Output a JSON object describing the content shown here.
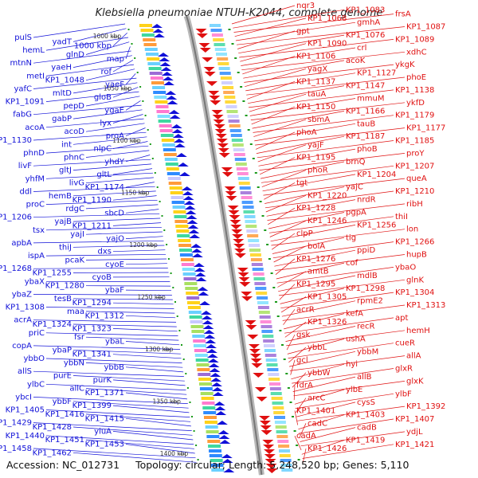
{
  "title": "Klebsiella pneumoniae NTUH-K2044, complete genome",
  "footer": {
    "accession": "Accession: NC_012731",
    "topology": "Topology: circular; Length: 5,248,520 bp; Genes: 5,110"
  },
  "colors": {
    "left_strand": "#1010d8",
    "right_strand": "#e01010",
    "backbone": "#9a9a9a"
  },
  "kbp_ticks": [
    "1000 kbp",
    "1050 kbp",
    "1100 kbp",
    "1150 kbp",
    "1200 kbp",
    "1250 kbp",
    "1300 kbp",
    "1350 kbp",
    "1400 kbp"
  ],
  "left_labels": [
    [
      "pulS",
      0.08
    ],
    [
      "yadT",
      0.1
    ],
    [
      "1000 kbp",
      0.15
    ],
    [
      "hemL",
      0.12
    ],
    [
      "glnD",
      0.14
    ],
    [
      "map",
      0.17
    ],
    [
      "mtnN",
      0.14
    ],
    [
      "yaeH",
      0.16
    ],
    [
      "rof",
      0.2
    ],
    [
      "metI",
      0.22
    ],
    [
      "KP1_1048",
      0.21
    ],
    [
      "yaeF",
      0.23
    ],
    [
      "yafC",
      0.22
    ],
    [
      "mltD",
      0.24
    ],
    [
      "gloB",
      0.25
    ],
    [
      "KP1_1091",
      0.26
    ],
    [
      "pepD",
      0.28
    ],
    [
      "ygaE",
      0.29
    ],
    [
      "fabG",
      0.3
    ],
    [
      "gabP",
      0.31
    ],
    [
      "lyx",
      0.32
    ],
    [
      "acoA",
      0.33
    ],
    [
      "acoD",
      0.34
    ],
    [
      "proA",
      0.35
    ],
    [
      "KP1_1130",
      0.36
    ],
    [
      "int",
      0.37
    ],
    [
      "nlpC",
      0.38
    ],
    [
      "phnD",
      0.39
    ],
    [
      "phnC",
      0.4
    ],
    [
      "yhdY",
      0.41
    ],
    [
      "livF",
      0.42
    ],
    [
      "gltJ",
      0.43
    ],
    [
      "gltL",
      0.44
    ],
    [
      "yhfM",
      0.45
    ],
    [
      "livG",
      0.46
    ],
    [
      "KP1_1174",
      0.47
    ],
    [
      "ddl",
      0.48
    ],
    [
      "hemB",
      0.49
    ],
    [
      "KP1_1190",
      0.5
    ],
    [
      "proC",
      0.51
    ],
    [
      "rdgC",
      0.52
    ],
    [
      "sbcD",
      0.53
    ],
    [
      "KP1_1206",
      0.54
    ],
    [
      "yajB",
      0.55
    ],
    [
      "KP1_1211",
      0.56
    ],
    [
      "tsx",
      0.57
    ],
    [
      "yajI",
      0.58
    ],
    [
      "yajO",
      0.59
    ],
    [
      "apbA",
      0.6
    ],
    [
      "thiJ",
      0.61
    ],
    [
      "dxs",
      0.6
    ],
    [
      "ispA",
      0.61
    ],
    [
      "pcaK",
      0.62
    ],
    [
      "cyoE",
      0.63
    ],
    [
      "KP1_1268",
      0.64
    ],
    [
      "KP1_1255",
      0.64
    ],
    [
      "cyoB",
      0.65
    ],
    [
      "ybaX",
      0.66
    ],
    [
      "KP1_1280",
      0.67
    ],
    [
      "ybaF",
      0.68
    ],
    [
      "ybaZ",
      0.69
    ],
    [
      "tesB",
      0.7
    ],
    [
      "KP1_1294",
      0.71
    ],
    [
      "KP1_1308",
      0.72
    ],
    [
      "maa",
      0.73
    ],
    [
      "KP1_1312",
      0.74
    ],
    [
      "acrA",
      0.75
    ],
    [
      "KP1_1324",
      0.76
    ],
    [
      "KP1_1323",
      0.77
    ],
    [
      "priC",
      0.78
    ],
    [
      "fsr",
      0.79
    ],
    [
      "ybaL",
      0.8
    ],
    [
      "copA",
      0.81
    ],
    [
      "ybaP",
      0.82
    ],
    [
      "KP1_1341",
      0.83
    ],
    [
      "ybbO",
      0.84
    ],
    [
      "ybbN",
      0.85
    ],
    [
      "ybbB",
      0.86
    ],
    [
      "allS",
      0.87
    ],
    [
      "purE",
      0.88
    ],
    [
      "purK",
      0.89
    ],
    [
      "ylbC",
      0.9
    ],
    [
      "allC",
      0.91
    ],
    [
      "KP1_1371",
      0.92
    ],
    [
      "ybcI",
      0.93
    ],
    [
      "ybbF",
      0.94
    ],
    [
      "KP1_1399",
      0.95
    ],
    [
      "KP1_1405",
      0.96
    ],
    [
      "KP1_1416",
      0.97
    ],
    [
      "KP1_1415",
      0.98
    ],
    [
      "KP1_1429",
      0.99
    ],
    [
      "KP1_1428",
      1.0
    ],
    [
      "yiuA",
      1.01
    ],
    [
      "KP1_1440",
      1.02
    ],
    [
      "KP1_1451",
      1.03
    ],
    [
      "KP1_1453",
      1.04
    ],
    [
      "KP1_1458",
      1.05
    ],
    [
      "KP1_1462",
      1.06
    ]
  ],
  "right_labels": [
    [
      "nqr3",
      0.02
    ],
    [
      "KP1_1083",
      0.04
    ],
    [
      "frsA",
      0.06
    ],
    [
      "KP1_1068",
      0.06
    ],
    [
      "gmhA",
      0.07
    ],
    [
      "KP1_1087",
      0.08
    ],
    [
      "gpt",
      0.09
    ],
    [
      "KP1_1076",
      0.09
    ],
    [
      "KP1_1089",
      0.1
    ],
    [
      "KP1_1090",
      0.11
    ],
    [
      "crl",
      0.12
    ],
    [
      "xdhC",
      0.13
    ],
    [
      "KP1_1106",
      0.14
    ],
    [
      "acoK",
      0.15
    ],
    [
      "ykgK",
      0.16
    ],
    [
      "yagX",
      0.17
    ],
    [
      "KP1_1127",
      0.18
    ],
    [
      "phoE",
      0.19
    ],
    [
      "KP1_1137",
      0.2
    ],
    [
      "KP1_1147",
      0.21
    ],
    [
      "KP1_1138",
      0.22
    ],
    [
      "tauA",
      0.23
    ],
    [
      "mmuM",
      0.24
    ],
    [
      "ykfD",
      0.25
    ],
    [
      "KP1_1150",
      0.26
    ],
    [
      "KP1_1166",
      0.27
    ],
    [
      "KP1_1179",
      0.28
    ],
    [
      "sbmA",
      0.29
    ],
    [
      "tauB",
      0.3
    ],
    [
      "KP1_1177",
      0.31
    ],
    [
      "phoA",
      0.32
    ],
    [
      "KP1_1187",
      0.33
    ],
    [
      "KP1_1185",
      0.34
    ],
    [
      "yajF",
      0.35
    ],
    [
      "phoB",
      0.36
    ],
    [
      "proY",
      0.37
    ],
    [
      "KP1_1195",
      0.38
    ],
    [
      "brnQ",
      0.39
    ],
    [
      "KP1_1207",
      0.4
    ],
    [
      "phoR",
      0.41
    ],
    [
      "KP1_1204",
      0.42
    ],
    [
      "queA",
      0.43
    ],
    [
      "tgt",
      0.44
    ],
    [
      "yajC",
      0.45
    ],
    [
      "KP1_1210",
      0.46
    ],
    [
      "KP1_1220",
      0.47
    ],
    [
      "nrdR",
      0.48
    ],
    [
      "ribH",
      0.49
    ],
    [
      "KP1_1228",
      0.5
    ],
    [
      "pgpA",
      0.51
    ],
    [
      "thiI",
      0.52
    ],
    [
      "KP1_1246",
      0.53
    ],
    [
      "KP1_1256",
      0.54
    ],
    [
      "lon",
      0.55
    ],
    [
      "clpP",
      0.56
    ],
    [
      "tig",
      0.57
    ],
    [
      "KP1_1266",
      0.58
    ],
    [
      "bolA",
      0.59
    ],
    [
      "ppiD",
      0.6
    ],
    [
      "hupB",
      0.61
    ],
    [
      "KP1_1276",
      0.62
    ],
    [
      "cof",
      0.63
    ],
    [
      "ybaO",
      0.64
    ],
    [
      "amtB",
      0.65
    ],
    [
      "mdlB",
      0.66
    ],
    [
      "glnK",
      0.67
    ],
    [
      "KP1_1295",
      0.68
    ],
    [
      "KP1_1298",
      0.69
    ],
    [
      "KP1_1304",
      0.7
    ],
    [
      "KP1_1305",
      0.71
    ],
    [
      "rpmE2",
      0.72
    ],
    [
      "KP1_1313",
      0.73
    ],
    [
      "acrR",
      0.74
    ],
    [
      "kefA",
      0.75
    ],
    [
      "apt",
      0.76
    ],
    [
      "KP1_1326",
      0.77
    ],
    [
      "recR",
      0.78
    ],
    [
      "hemH",
      0.79
    ],
    [
      "gsk",
      0.8
    ],
    [
      "ushA",
      0.81
    ],
    [
      "cueR",
      0.82
    ],
    [
      "ybbL",
      0.83
    ],
    [
      "ybbM",
      0.84
    ],
    [
      "allA",
      0.85
    ],
    [
      "gcl",
      0.86
    ],
    [
      "hyi",
      0.87
    ],
    [
      "glxR",
      0.88
    ],
    [
      "ybbW",
      0.89
    ],
    [
      "allB",
      0.9
    ],
    [
      "glxK",
      0.91
    ],
    [
      "fdrA",
      0.92
    ],
    [
      "ylbE",
      0.93
    ],
    [
      "ylbF",
      0.94
    ],
    [
      "arcC",
      0.95
    ],
    [
      "cysS",
      0.96
    ],
    [
      "KP1_1392",
      0.97
    ],
    [
      "KP1_1401",
      0.98
    ],
    [
      "KP1_1403",
      0.99
    ],
    [
      "KP1_1407",
      1.0
    ],
    [
      "cadC",
      1.01
    ],
    [
      "cadB",
      1.02
    ],
    [
      "ydjL",
      1.03
    ],
    [
      "cadA",
      1.04
    ],
    [
      "KP1_1419",
      1.05
    ],
    [
      "KP1_1421",
      1.06
    ],
    [
      "KP1_1426",
      1.07
    ]
  ]
}
